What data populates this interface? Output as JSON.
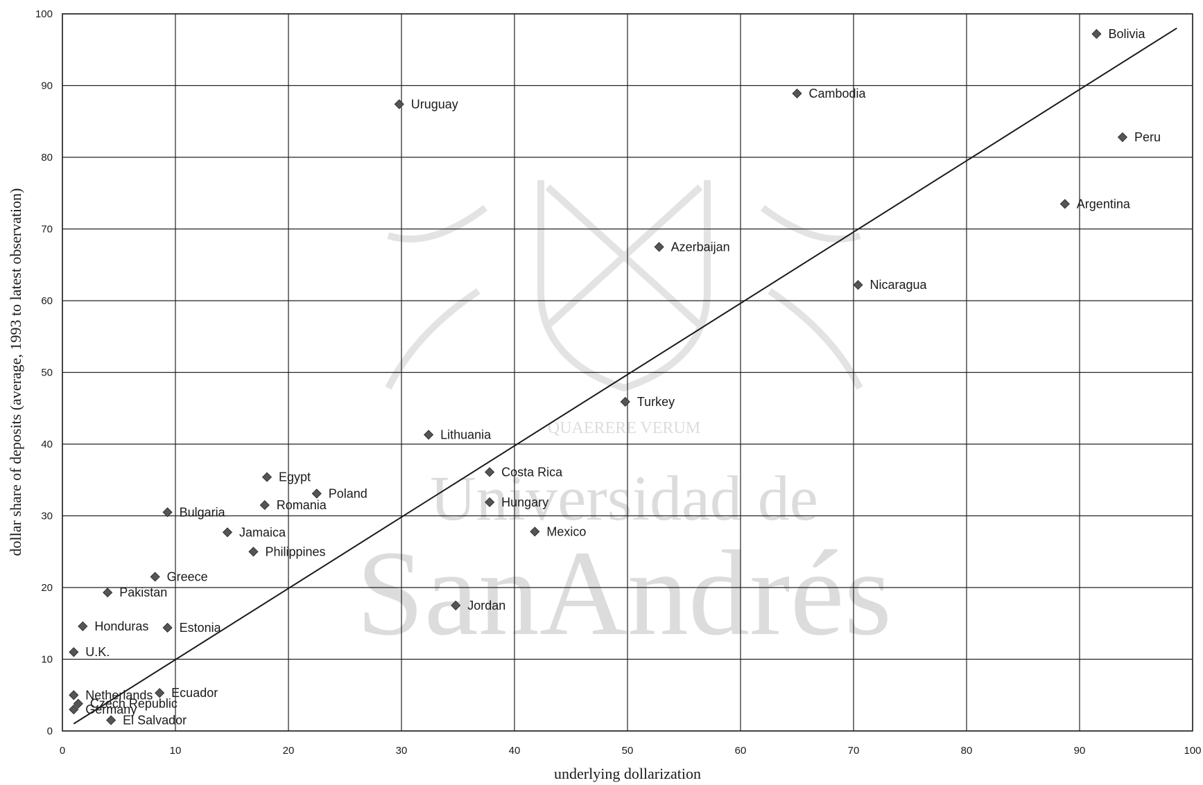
{
  "chart_data": {
    "type": "scatter",
    "xlabel": "underlying dollarization",
    "ylabel": "dollar share of deposits (average, 1993 to latest observation)",
    "xlim": [
      0,
      100
    ],
    "ylim": [
      0,
      100
    ],
    "xticks": [
      0,
      10,
      20,
      30,
      40,
      50,
      60,
      70,
      80,
      90,
      100
    ],
    "yticks": [
      0,
      10,
      20,
      30,
      40,
      50,
      60,
      70,
      80,
      90,
      100
    ],
    "grid": true,
    "points": [
      {
        "label": "Bolivia",
        "x": 91.5,
        "y": 97.2
      },
      {
        "label": "Cambodia",
        "x": 65.0,
        "y": 88.9
      },
      {
        "label": "Uruguay",
        "x": 29.8,
        "y": 87.4
      },
      {
        "label": "Peru",
        "x": 93.8,
        "y": 82.8
      },
      {
        "label": "Argentina",
        "x": 88.7,
        "y": 73.5
      },
      {
        "label": "Azerbaijan",
        "x": 52.8,
        "y": 67.5
      },
      {
        "label": "Nicaragua",
        "x": 70.4,
        "y": 62.2
      },
      {
        "label": "Turkey",
        "x": 49.8,
        "y": 45.9
      },
      {
        "label": "Lithuania",
        "x": 32.4,
        "y": 41.3
      },
      {
        "label": "Costa Rica",
        "x": 37.8,
        "y": 36.1
      },
      {
        "label": "Egypt",
        "x": 18.1,
        "y": 35.4
      },
      {
        "label": "Poland",
        "x": 22.5,
        "y": 33.1
      },
      {
        "label": "Hungary",
        "x": 37.8,
        "y": 31.9
      },
      {
        "label": "Romania",
        "x": 17.9,
        "y": 31.5
      },
      {
        "label": "Bulgaria",
        "x": 9.3,
        "y": 30.5
      },
      {
        "label": "Jamaica",
        "x": 14.6,
        "y": 27.7
      },
      {
        "label": "Mexico",
        "x": 41.8,
        "y": 27.8
      },
      {
        "label": "Philippines",
        "x": 16.9,
        "y": 25.0
      },
      {
        "label": "Greece",
        "x": 8.2,
        "y": 21.5
      },
      {
        "label": "Pakistan",
        "x": 4.0,
        "y": 19.3
      },
      {
        "label": "Jordan",
        "x": 34.8,
        "y": 17.5
      },
      {
        "label": "Honduras",
        "x": 1.8,
        "y": 14.6
      },
      {
        "label": "Estonia",
        "x": 9.3,
        "y": 14.4
      },
      {
        "label": "U.K.",
        "x": 1.0,
        "y": 11.0
      },
      {
        "label": "Netherlands",
        "x": 1.0,
        "y": 5.0
      },
      {
        "label": "Ecuador",
        "x": 8.6,
        "y": 5.3
      },
      {
        "label": "Czech Republic",
        "x": 1.4,
        "y": 3.8
      },
      {
        "label": "Germany",
        "x": 1.0,
        "y": 3.0
      },
      {
        "label": "El Salvador",
        "x": 4.3,
        "y": 1.5
      }
    ],
    "fit_line": {
      "x": [
        1.0,
        98.6
      ],
      "y": [
        1.0,
        98.0
      ]
    }
  },
  "watermark": {
    "motto": "QUAERERE VERUM",
    "line1": "Universidad de",
    "line2": "SanAndrés"
  }
}
